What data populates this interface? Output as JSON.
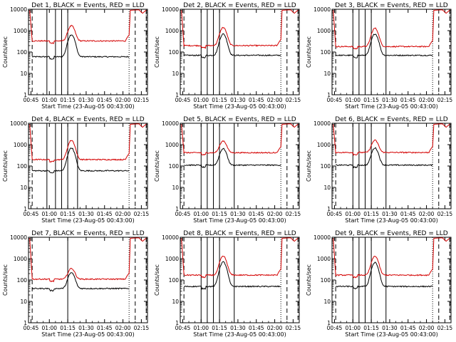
{
  "chart_data": [
    {
      "type": "line",
      "title": "Det 1, BLACK = Events, RED = LLD",
      "xlabel": "Start Time (23-Aug-05 00:43:00)",
      "ylabel": "Counts/sec",
      "ylim": [
        1,
        10000
      ],
      "y_scale": "log",
      "x_tick_labels": [
        "00:45",
        "01:00",
        "01:15",
        "01:30",
        "01:45",
        "02:00",
        "02:15"
      ],
      "y_tick_labels": [
        "1",
        "10",
        "100",
        "1000",
        "10000"
      ],
      "series": [
        {
          "color": "#000000",
          "baseline": 60,
          "peak": 650,
          "peak_time": "01:18"
        },
        {
          "color": "#d40000",
          "baseline": 330,
          "peak": 1700,
          "peak_time": "01:18"
        }
      ],
      "solid_vlines": [
        "00:58",
        "01:05",
        "01:10",
        "01:15"
      ],
      "dotted_vlines": [
        "02:05"
      ],
      "dashed_vlines": [
        "00:46",
        "02:10",
        "02:19"
      ]
    },
    {
      "type": "line",
      "title": "Det 2, BLACK = Events, RED = LLD",
      "xlabel": "Start Time (23-Aug-05 00:43:00)",
      "ylabel": "Counts/sec",
      "ylim": [
        1,
        10000
      ],
      "y_scale": "log",
      "x_tick_labels": [
        "00:45",
        "01:00",
        "01:15",
        "01:30",
        "01:45",
        "02:00",
        "02:15"
      ],
      "y_tick_labels": [
        "1",
        "10",
        "100",
        "1000",
        "10000"
      ],
      "series": [
        {
          "color": "#000000",
          "baseline": 70,
          "peak": 700,
          "peak_time": "01:18"
        },
        {
          "color": "#d40000",
          "baseline": 200,
          "peak": 1400,
          "peak_time": "01:18"
        }
      ],
      "solid_vlines": [
        "01:00",
        "01:05",
        "01:10",
        "01:15",
        "01:27"
      ],
      "dotted_vlines": [
        "02:05"
      ],
      "dashed_vlines": [
        "00:46",
        "02:10",
        "02:19"
      ]
    },
    {
      "type": "line",
      "title": "Det 3, BLACK = Events, RED = LLD",
      "xlabel": "Start Time (23-Aug-05 00:43:00)",
      "ylabel": "Counts/sec",
      "ylim": [
        1,
        10000
      ],
      "y_scale": "log",
      "x_tick_labels": [
        "00:45",
        "01:00",
        "01:15",
        "01:30",
        "01:45",
        "02:00",
        "02:15"
      ],
      "y_tick_labels": [
        "1",
        "10",
        "100",
        "1000",
        "10000"
      ],
      "series": [
        {
          "color": "#000000",
          "baseline": 70,
          "peak": 700,
          "peak_time": "01:18"
        },
        {
          "color": "#d40000",
          "baseline": 180,
          "peak": 1300,
          "peak_time": "01:18"
        }
      ],
      "solid_vlines": [
        "01:00",
        "01:05",
        "01:10",
        "01:15",
        "01:27"
      ],
      "dotted_vlines": [
        "02:05"
      ],
      "dashed_vlines": [
        "00:46",
        "02:10",
        "02:19"
      ]
    },
    {
      "type": "line",
      "title": "Det 4, BLACK = Events, RED = LLD",
      "xlabel": "Start Time (23-Aug-05 00:43:00)",
      "ylabel": "Counts/sec",
      "ylim": [
        1,
        10000
      ],
      "y_scale": "log",
      "x_tick_labels": [
        "00:45",
        "01:00",
        "01:15",
        "01:30",
        "01:45",
        "02:00",
        "02:15"
      ],
      "y_tick_labels": [
        "1",
        "10",
        "100",
        "1000",
        "10000"
      ],
      "series": [
        {
          "color": "#000000",
          "baseline": 60,
          "peak": 700,
          "peak_time": "01:18"
        },
        {
          "color": "#d40000",
          "baseline": 200,
          "peak": 1600,
          "peak_time": "01:18"
        }
      ],
      "solid_vlines": [
        "00:58",
        "01:05",
        "01:10",
        "01:15",
        "01:23"
      ],
      "dotted_vlines": [
        "02:05"
      ],
      "dashed_vlines": [
        "00:46",
        "02:10",
        "02:19"
      ]
    },
    {
      "type": "line",
      "title": "Det 5, BLACK = Events, RED = LLD",
      "xlabel": "Start Time (23-Aug-05 00:43:00)",
      "ylabel": "Counts/sec",
      "ylim": [
        1,
        10000
      ],
      "y_scale": "log",
      "x_tick_labels": [
        "00:45",
        "01:00",
        "01:15",
        "01:30",
        "01:45",
        "02:00",
        "02:15"
      ],
      "y_tick_labels": [
        "1",
        "10",
        "100",
        "1000",
        "10000"
      ],
      "series": [
        {
          "color": "#000000",
          "baseline": 110,
          "peak": 650,
          "peak_time": "01:18"
        },
        {
          "color": "#d40000",
          "baseline": 420,
          "peak": 1500,
          "peak_time": "01:18"
        }
      ],
      "solid_vlines": [
        "01:00",
        "01:05",
        "01:10",
        "01:15",
        "01:27"
      ],
      "dotted_vlines": [
        "02:05"
      ],
      "dashed_vlines": [
        "00:46",
        "02:10",
        "02:19"
      ]
    },
    {
      "type": "line",
      "title": "Det 6, BLACK = Events, RED = LLD",
      "xlabel": "Start Time (23-Aug-05 00:43:00)",
      "ylabel": "Counts/sec",
      "ylim": [
        1,
        10000
      ],
      "y_scale": "log",
      "x_tick_labels": [
        "00:45",
        "01:00",
        "01:15",
        "01:30",
        "01:45",
        "02:00",
        "02:15"
      ],
      "y_tick_labels": [
        "1",
        "10",
        "100",
        "1000",
        "10000"
      ],
      "series": [
        {
          "color": "#000000",
          "baseline": 110,
          "peak": 700,
          "peak_time": "01:18"
        },
        {
          "color": "#d40000",
          "baseline": 430,
          "peak": 1600,
          "peak_time": "01:18"
        }
      ],
      "solid_vlines": [
        "01:00",
        "01:05",
        "01:10",
        "01:15",
        "01:27"
      ],
      "dotted_vlines": [
        "02:05"
      ],
      "dashed_vlines": [
        "00:46",
        "02:10",
        "02:19"
      ]
    },
    {
      "type": "line",
      "title": "Det 7, BLACK = Events, RED = LLD",
      "xlabel": "Start Time (23-Aug-05 00:43:00)",
      "ylabel": "Counts/sec",
      "ylim": [
        1,
        10000
      ],
      "y_scale": "log",
      "x_tick_labels": [
        "00:45",
        "01:00",
        "01:15",
        "01:30",
        "01:45",
        "02:00",
        "02:15"
      ],
      "y_tick_labels": [
        "1",
        "10",
        "100",
        "1000",
        "10000"
      ],
      "series": [
        {
          "color": "#000000",
          "baseline": 40,
          "peak": 220,
          "peak_time": "01:18"
        },
        {
          "color": "#d40000",
          "baseline": 110,
          "peak": 350,
          "peak_time": "01:18"
        }
      ],
      "solid_vlines": [
        "01:15"
      ],
      "dotted_vlines": [
        "02:05"
      ],
      "dashed_vlines": [
        "00:46",
        "02:10",
        "02:19"
      ]
    },
    {
      "type": "line",
      "title": "Det 8, BLACK = Events, RED = LLD",
      "xlabel": "Start Time (23-Aug-05 00:43:00)",
      "ylabel": "Counts/sec",
      "ylim": [
        1,
        10000
      ],
      "y_scale": "log",
      "x_tick_labels": [
        "00:45",
        "01:00",
        "01:15",
        "01:30",
        "01:45",
        "02:00",
        "02:15"
      ],
      "y_tick_labels": [
        "1",
        "10",
        "100",
        "1000",
        "10000"
      ],
      "series": [
        {
          "color": "#000000",
          "baseline": 50,
          "peak": 700,
          "peak_time": "01:18"
        },
        {
          "color": "#d40000",
          "baseline": 170,
          "peak": 1300,
          "peak_time": "01:18"
        }
      ],
      "solid_vlines": [
        "01:00",
        "01:05",
        "01:10",
        "01:15",
        "01:27"
      ],
      "dotted_vlines": [
        "02:05"
      ],
      "dashed_vlines": [
        "00:46",
        "02:10",
        "02:19"
      ]
    },
    {
      "type": "line",
      "title": "Det 9, BLACK = Events, RED = LLD",
      "xlabel": "Start Time (23-Aug-05 00:43:00)",
      "ylabel": "Counts/sec",
      "ylim": [
        1,
        10000
      ],
      "y_scale": "log",
      "x_tick_labels": [
        "00:45",
        "01:00",
        "01:15",
        "01:30",
        "01:45",
        "02:00",
        "02:15"
      ],
      "y_tick_labels": [
        "1",
        "10",
        "100",
        "1000",
        "10000"
      ],
      "series": [
        {
          "color": "#000000",
          "baseline": 50,
          "peak": 650,
          "peak_time": "01:18"
        },
        {
          "color": "#d40000",
          "baseline": 170,
          "peak": 1300,
          "peak_time": "01:18"
        }
      ],
      "solid_vlines": [
        "01:00",
        "01:05",
        "01:10",
        "01:15",
        "01:27"
      ],
      "dotted_vlines": [
        "02:05"
      ],
      "dashed_vlines": [
        "00:46",
        "02:10",
        "02:19"
      ]
    }
  ]
}
